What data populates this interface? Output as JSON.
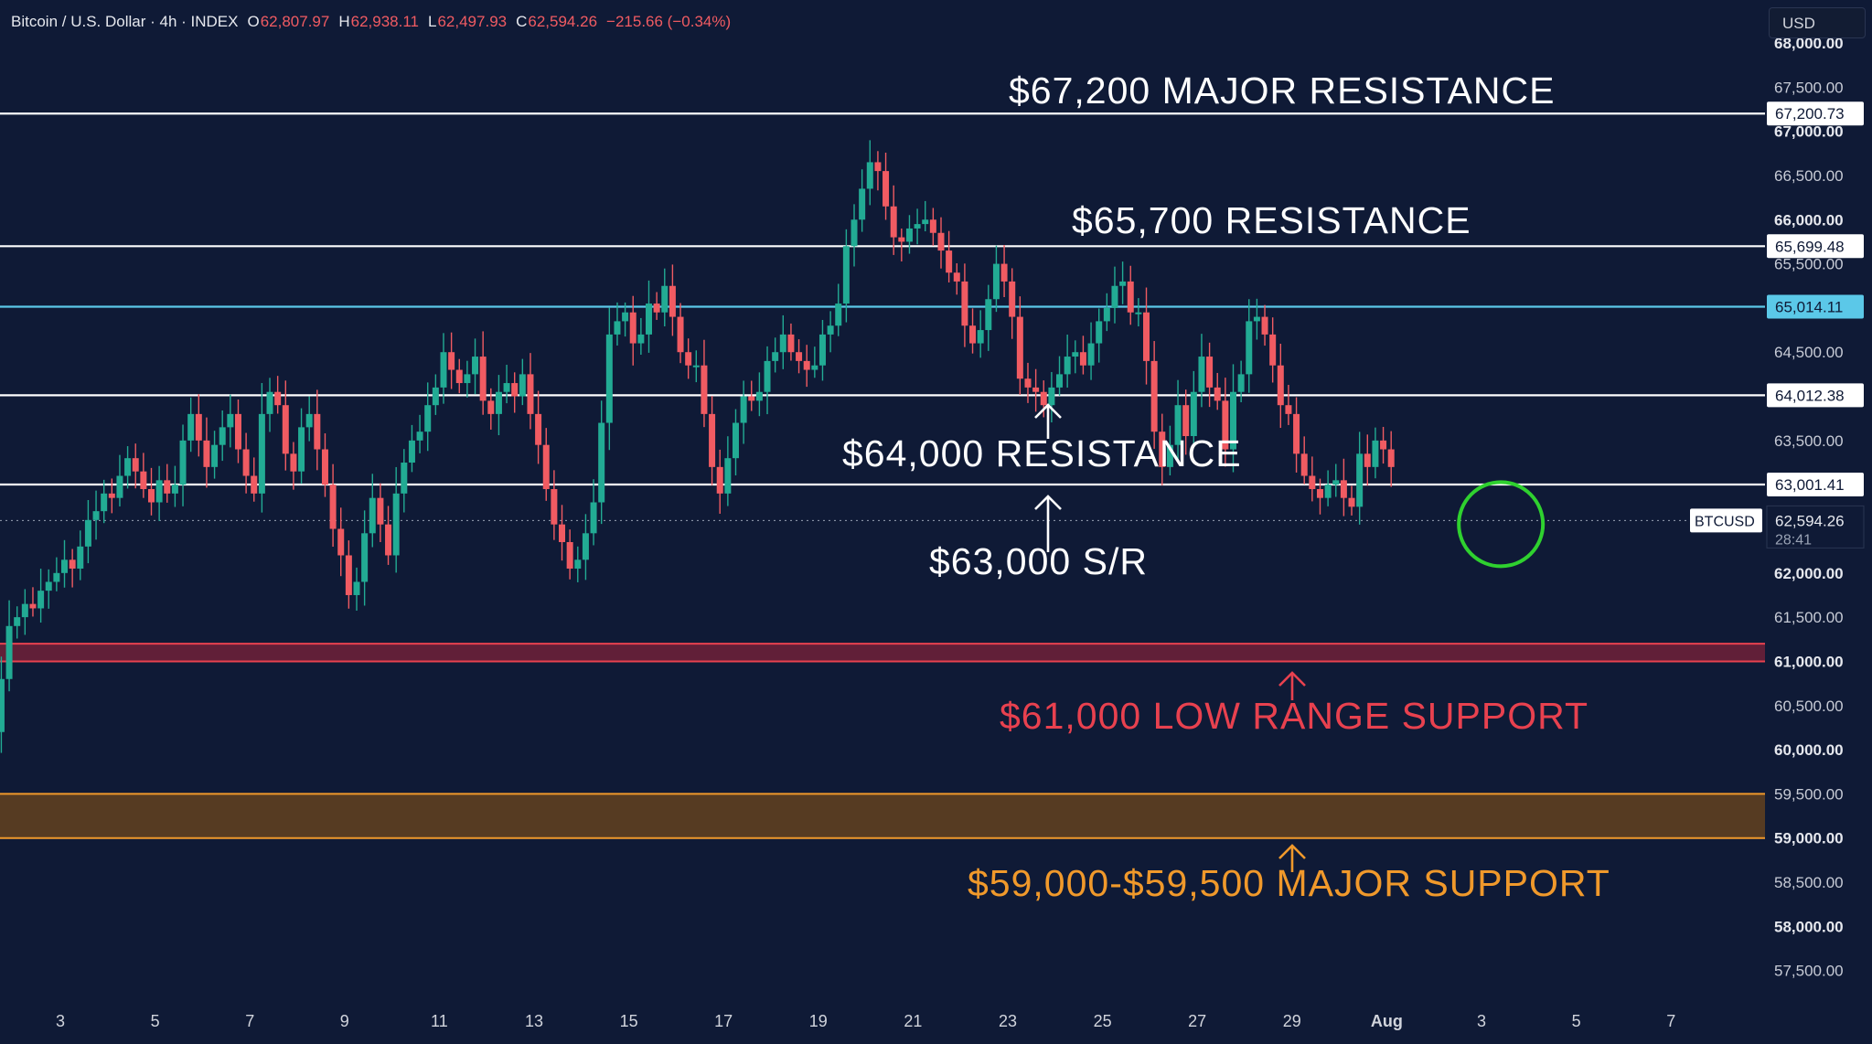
{
  "header": {
    "symbol": "Bitcoin / U.S. Dollar · 4h · INDEX",
    "open_label": "O",
    "open": "62,807.97",
    "high_label": "H",
    "high": "62,938.11",
    "low_label": "L",
    "low": "62,497.93",
    "close_label": "C",
    "close": "62,594.26",
    "change": "−215.66 (−0.34%)"
  },
  "currency_button": "USD",
  "colors": {
    "background": "#0f1a36",
    "up": "#22ab94",
    "down": "#f05b62",
    "resistance": "#ffffff",
    "cyan_level": "#5bc8e8",
    "low_range_support": "#e8414f",
    "major_support": "#f0992b",
    "highlight_circle": "#2fd12f"
  },
  "chart_data": {
    "type": "candlestick",
    "timeframe": "4h",
    "price_axis": {
      "ylim": [
        57300,
        68300
      ],
      "tick_labels": [
        "68,000.00",
        "67,500.00",
        "67,000.00",
        "66,500.00",
        "66,000.00",
        "65,500.00",
        "65,000.00",
        "64,500.00",
        "64,000.00",
        "63,500.00",
        "63,000.00",
        "62,500.00",
        "62,000.00",
        "61,500.00",
        "61,000.00",
        "60,500.00",
        "60,000.00",
        "59,500.00",
        "59,000.00",
        "58,500.00",
        "58,000.00",
        "57,500.00"
      ]
    },
    "time_axis": {
      "tick_labels": [
        "3",
        "5",
        "7",
        "9",
        "11",
        "13",
        "15",
        "17",
        "19",
        "21",
        "23",
        "25",
        "27",
        "29",
        "Aug",
        "3",
        "5",
        "7"
      ],
      "tick_days": [
        3,
        5,
        7,
        9,
        11,
        13,
        15,
        17,
        19,
        21,
        23,
        25,
        27,
        29,
        31,
        33,
        35,
        37
      ]
    },
    "level_lines": [
      {
        "price": 67200.73,
        "label": "67,200.73",
        "color": "#ffffff"
      },
      {
        "price": 65699.48,
        "label": "65,699.48",
        "color": "#ffffff"
      },
      {
        "price": 65014.11,
        "label": "65,014.11",
        "color": "#5bc8e8"
      },
      {
        "price": 64012.38,
        "label": "64,012.38",
        "color": "#ffffff"
      },
      {
        "price": 63001.41,
        "label": "63,001.41",
        "color": "#ffffff"
      }
    ],
    "zones": [
      {
        "from": 61000,
        "to": 61200,
        "fill": "#6a2038",
        "edge": "#e8414f"
      },
      {
        "from": 59000,
        "to": 59500,
        "fill": "#5e3f20",
        "edge": "#f0992b"
      }
    ],
    "annotations": [
      {
        "text": "$67,200 MAJOR RESISTANCE",
        "color": "#ffffff"
      },
      {
        "text": "$65,700 RESISTANCE",
        "color": "#ffffff"
      },
      {
        "text": "$64,000 RESISTANCE",
        "color": "#ffffff"
      },
      {
        "text": "$63,000 S/R",
        "color": "#ffffff"
      },
      {
        "text": "$61,000 LOW RANGE SUPPORT",
        "color": "#e8414f"
      },
      {
        "text": "$59,000-$59,500 MAJOR SUPPORT",
        "color": "#f0992b"
      }
    ],
    "last_price": {
      "symbol": "BTCUSD",
      "price": 62594.26,
      "price_label": "62,594.26",
      "countdown": "28:41"
    },
    "highlight": {
      "day": 33.1,
      "price": 62594
    },
    "candle_interval_days": 0.1667,
    "first_candle_day": 1.42,
    "closes_start": 60000,
    "closes": [
      60000,
      60200,
      60800,
      61400,
      61500,
      61650,
      61600,
      61800,
      61900,
      62000,
      62150,
      62050,
      62300,
      62600,
      62700,
      62900,
      62850,
      63100,
      63300,
      63150,
      62950,
      62800,
      63050,
      62900,
      63000,
      63500,
      63800,
      63500,
      63200,
      63450,
      63650,
      63800,
      63400,
      63100,
      62900,
      63800,
      64050,
      63900,
      63350,
      63150,
      63650,
      63800,
      63400,
      63000,
      62500,
      62200,
      61750,
      61900,
      62450,
      62850,
      62550,
      62200,
      62900,
      63250,
      63500,
      63600,
      63900,
      64100,
      64500,
      64300,
      64150,
      64250,
      64450,
      63950,
      63800,
      64050,
      64150,
      64000,
      64250,
      63800,
      63450,
      62950,
      62550,
      62350,
      62050,
      62150,
      62450,
      62800,
      63700,
      64700,
      64850,
      64950,
      64600,
      64700,
      65050,
      64950,
      65250,
      64900,
      64500,
      64350,
      64350,
      63800,
      63200,
      62900,
      63300,
      63700,
      64000,
      63950,
      64050,
      64400,
      64500,
      64700,
      64500,
      64400,
      64300,
      64350,
      64700,
      64800,
      65050,
      65700,
      66000,
      66350,
      66650,
      66550,
      66150,
      65800,
      65750,
      65900,
      65950,
      66000,
      65850,
      65650,
      65400,
      65300,
      64800,
      64600,
      64750,
      65100,
      65500,
      65300,
      64900,
      64200,
      64100,
      64050,
      63900,
      64100,
      64250,
      64450,
      64500,
      64350,
      64600,
      64850,
      65000,
      65250,
      65300,
      64950,
      64950,
      64400,
      63600,
      63200,
      63450,
      63900,
      63550,
      64050,
      64450,
      64100,
      63950,
      63400,
      64050,
      64250,
      64850,
      64900,
      64700,
      64350,
      63900,
      63800,
      63350,
      63100,
      62950,
      62850,
      63000,
      63050,
      62850,
      62750,
      63350,
      63200,
      63500,
      63400,
      63200
    ]
  }
}
